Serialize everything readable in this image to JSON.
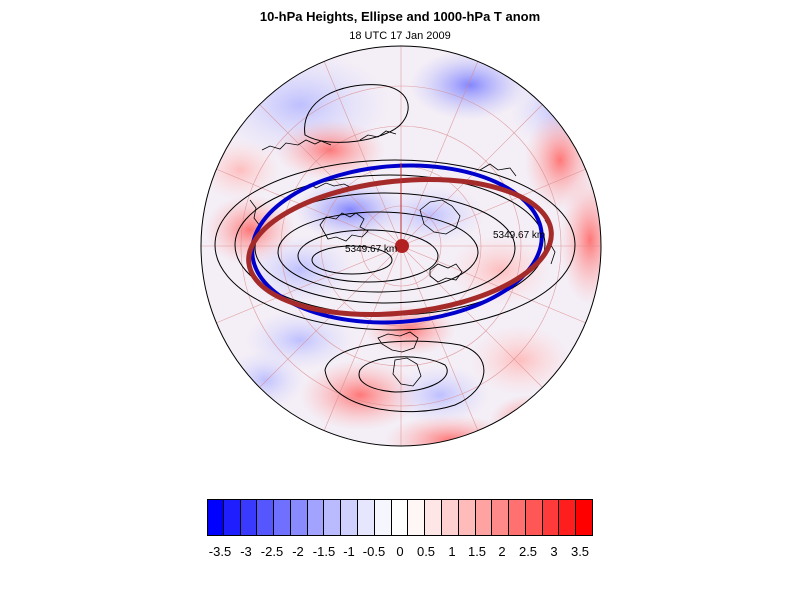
{
  "figure": {
    "title": "10-hPa Heights, Ellipse and 1000-hPa T anom",
    "subtitle": "18 UTC 17 Jan 2009"
  },
  "map": {
    "projection": "polar stereographic (north pole)",
    "contour_labels": [
      "5349.67 km",
      "5349.67 km"
    ],
    "colors": {
      "ellipse": "#a52a2a",
      "edge_contour": "#0000cc",
      "height_contours": "#000000",
      "center_marker": "#b22222"
    }
  },
  "colorbar": {
    "labels": [
      "-3.5",
      "-3",
      "-2.5",
      "-2",
      "-1.5",
      "-1",
      "-0.5",
      "0",
      "0.5",
      "1",
      "1.5",
      "2",
      "2.5",
      "3",
      "3.5"
    ],
    "colors": [
      "#0000ff",
      "#1e1eff",
      "#3a3aff",
      "#5656ff",
      "#7070ff",
      "#8a8aff",
      "#a2a2ff",
      "#babaff",
      "#d0d0ff",
      "#e6e6ff",
      "#f6f6ff",
      "#ffffff",
      "#fff6f6",
      "#ffe6e6",
      "#ffd0d0",
      "#ffbaba",
      "#ffa2a2",
      "#ff8a8a",
      "#ff7070",
      "#ff5656",
      "#ff3a3a",
      "#ff1e1e",
      "#ff0000"
    ]
  }
}
